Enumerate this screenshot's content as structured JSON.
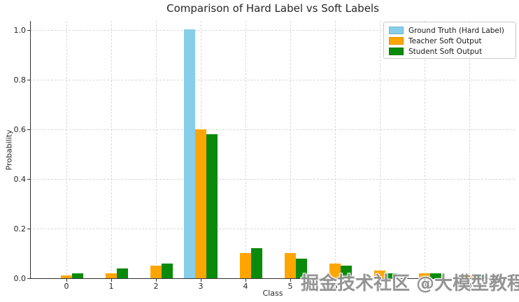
{
  "chart_data": {
    "type": "bar",
    "title": "Comparison of Hard Label vs Soft Labels",
    "xlabel": "Class",
    "ylabel": "Probability",
    "categories": [
      "0",
      "1",
      "2",
      "3",
      "4",
      "5",
      "6",
      "7",
      "8",
      "9"
    ],
    "series": [
      {
        "name": "Ground Truth (Hard Label)",
        "color": "#87CEEB",
        "values": [
          0,
          0,
          0,
          1.0,
          0,
          0,
          0,
          0,
          0,
          0
        ]
      },
      {
        "name": "Teacher Soft Output",
        "color": "#FFA500",
        "values": [
          0.01,
          0.02,
          0.05,
          0.6,
          0.1,
          0.1,
          0.06,
          0.03,
          0.02,
          0.01
        ]
      },
      {
        "name": "Student Soft Output",
        "color": "#0A8A0A",
        "values": [
          0.02,
          0.04,
          0.06,
          0.58,
          0.12,
          0.08,
          0.05,
          0.02,
          0.02,
          0.01
        ]
      }
    ],
    "ylim": [
      0,
      1.035
    ],
    "yticks": [
      "0.0",
      "0.2",
      "0.4",
      "0.6",
      "0.8",
      "1.0"
    ],
    "ytick_values": [
      0,
      0.2,
      0.4,
      0.6,
      0.8,
      1.0
    ],
    "grid": "dashed both axes",
    "legend_position": "upper right"
  },
  "watermark": {
    "text": "掘金技术社区 @大模型教程",
    "color": "#8f8f8f"
  }
}
